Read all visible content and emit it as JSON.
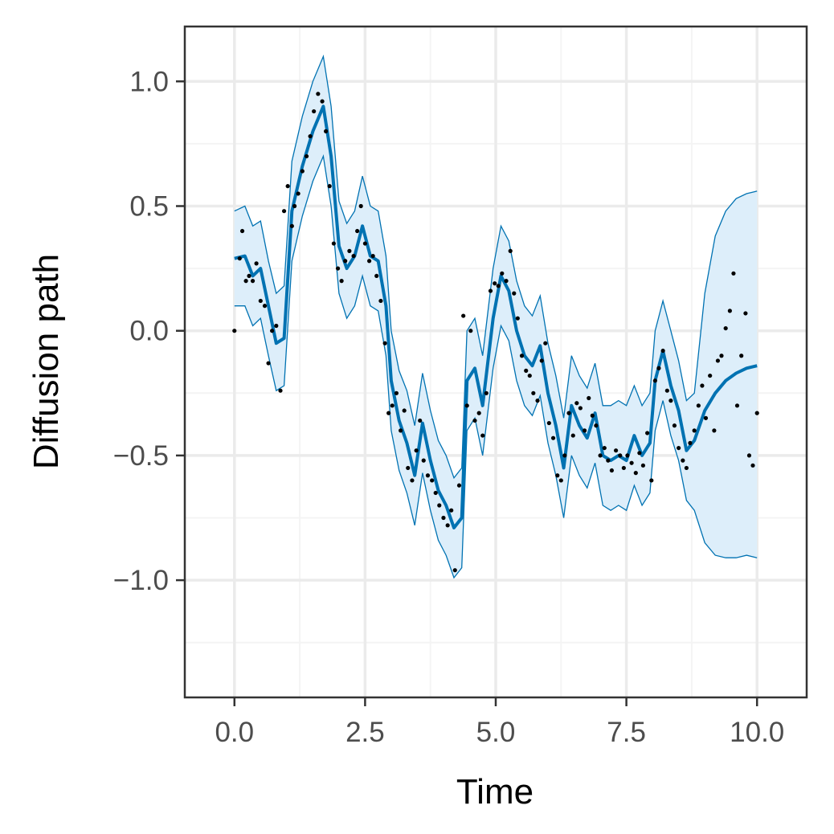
{
  "chart_data": {
    "type": "line",
    "xlabel": "Time",
    "ylabel": "Diffusion path",
    "xlim": [
      -0.95,
      10.95
    ],
    "ylim": [
      -1.47,
      1.22
    ],
    "x_ticks": [
      0.0,
      2.5,
      5.0,
      7.5,
      10.0
    ],
    "x_tick_labels": [
      "0.0",
      "2.5",
      "5.0",
      "7.5",
      "10.0"
    ],
    "y_ticks": [
      1.0,
      0.5,
      0.0,
      -0.5,
      -1.0
    ],
    "y_tick_labels": [
      "1.0",
      "0.5",
      "0.0",
      "−0.5",
      "−1.0"
    ],
    "grid": true,
    "series": [
      {
        "role": "posterior-mean",
        "x": [
          0.0,
          0.2,
          0.35,
          0.5,
          0.65,
          0.8,
          0.95,
          1.1,
          1.3,
          1.5,
          1.7,
          1.85,
          2.0,
          2.15,
          2.3,
          2.45,
          2.6,
          2.75,
          2.9,
          3.0,
          3.15,
          3.3,
          3.45,
          3.6,
          3.75,
          3.9,
          4.05,
          4.2,
          4.35,
          4.45,
          4.6,
          4.75,
          4.95,
          5.1,
          5.25,
          5.4,
          5.55,
          5.7,
          5.85,
          6.0,
          6.15,
          6.3,
          6.45,
          6.6,
          6.75,
          6.9,
          7.05,
          7.2,
          7.35,
          7.5,
          7.65,
          7.8,
          7.95,
          8.05,
          8.2,
          8.35,
          8.5,
          8.65,
          8.8,
          9.0,
          9.2,
          9.4,
          9.6,
          9.8,
          10.0
        ],
        "y": [
          0.29,
          0.3,
          0.22,
          0.25,
          0.1,
          -0.05,
          -0.03,
          0.48,
          0.66,
          0.8,
          0.9,
          0.7,
          0.34,
          0.25,
          0.3,
          0.42,
          0.3,
          0.28,
          0.1,
          -0.2,
          -0.36,
          -0.45,
          -0.58,
          -0.37,
          -0.52,
          -0.64,
          -0.7,
          -0.79,
          -0.75,
          -0.2,
          -0.15,
          -0.3,
          0.05,
          0.22,
          0.16,
          0.0,
          -0.1,
          -0.14,
          -0.06,
          -0.25,
          -0.38,
          -0.55,
          -0.3,
          -0.38,
          -0.43,
          -0.33,
          -0.5,
          -0.52,
          -0.5,
          -0.52,
          -0.42,
          -0.5,
          -0.45,
          -0.2,
          -0.08,
          -0.22,
          -0.32,
          -0.48,
          -0.44,
          -0.32,
          -0.25,
          -0.2,
          -0.17,
          -0.15,
          -0.14
        ]
      },
      {
        "role": "upper-band",
        "x": [
          0.0,
          0.2,
          0.35,
          0.5,
          0.65,
          0.8,
          0.95,
          1.1,
          1.3,
          1.5,
          1.7,
          1.85,
          2.0,
          2.15,
          2.3,
          2.45,
          2.6,
          2.75,
          2.9,
          3.0,
          3.15,
          3.3,
          3.45,
          3.6,
          3.75,
          3.9,
          4.05,
          4.2,
          4.35,
          4.45,
          4.6,
          4.75,
          4.95,
          5.1,
          5.25,
          5.4,
          5.55,
          5.7,
          5.85,
          6.0,
          6.15,
          6.3,
          6.45,
          6.6,
          6.75,
          6.9,
          7.05,
          7.2,
          7.35,
          7.5,
          7.65,
          7.8,
          7.95,
          8.05,
          8.2,
          8.35,
          8.5,
          8.65,
          8.8,
          9.0,
          9.2,
          9.4,
          9.6,
          9.8,
          10.0
        ],
        "y": [
          0.48,
          0.5,
          0.42,
          0.44,
          0.28,
          0.15,
          0.18,
          0.68,
          0.86,
          1.0,
          1.1,
          0.9,
          0.52,
          0.43,
          0.48,
          0.62,
          0.5,
          0.48,
          0.3,
          0.0,
          -0.16,
          -0.24,
          -0.38,
          -0.17,
          -0.32,
          -0.44,
          -0.5,
          -0.59,
          -0.55,
          0.0,
          0.05,
          -0.1,
          0.25,
          0.42,
          0.36,
          0.2,
          0.1,
          0.06,
          0.14,
          -0.05,
          -0.18,
          -0.35,
          -0.1,
          -0.18,
          -0.23,
          -0.13,
          -0.3,
          -0.3,
          -0.28,
          -0.3,
          -0.22,
          -0.3,
          -0.25,
          0.0,
          0.12,
          0.0,
          -0.12,
          -0.28,
          -0.25,
          0.15,
          0.38,
          0.48,
          0.53,
          0.55,
          0.56
        ]
      },
      {
        "role": "lower-band",
        "x": [
          0.0,
          0.2,
          0.35,
          0.5,
          0.65,
          0.8,
          0.95,
          1.1,
          1.3,
          1.5,
          1.7,
          1.85,
          2.0,
          2.15,
          2.3,
          2.45,
          2.6,
          2.75,
          2.9,
          3.0,
          3.15,
          3.3,
          3.45,
          3.6,
          3.75,
          3.9,
          4.05,
          4.2,
          4.35,
          4.45,
          4.6,
          4.75,
          4.95,
          5.1,
          5.25,
          5.4,
          5.55,
          5.7,
          5.85,
          6.0,
          6.15,
          6.3,
          6.45,
          6.6,
          6.75,
          6.9,
          7.05,
          7.2,
          7.35,
          7.5,
          7.65,
          7.8,
          7.95,
          8.05,
          8.2,
          8.35,
          8.5,
          8.65,
          8.8,
          9.0,
          9.2,
          9.4,
          9.6,
          9.8,
          10.0
        ],
        "y": [
          0.1,
          0.1,
          0.02,
          0.05,
          -0.1,
          -0.24,
          -0.22,
          0.28,
          0.46,
          0.6,
          0.7,
          0.5,
          0.15,
          0.05,
          0.1,
          0.22,
          0.1,
          0.08,
          -0.1,
          -0.4,
          -0.56,
          -0.65,
          -0.78,
          -0.57,
          -0.72,
          -0.84,
          -0.9,
          -0.99,
          -0.95,
          -0.4,
          -0.35,
          -0.5,
          -0.15,
          0.02,
          -0.04,
          -0.2,
          -0.3,
          -0.34,
          -0.26,
          -0.45,
          -0.58,
          -0.75,
          -0.5,
          -0.58,
          -0.63,
          -0.53,
          -0.7,
          -0.72,
          -0.7,
          -0.72,
          -0.62,
          -0.7,
          -0.65,
          -0.4,
          -0.28,
          -0.42,
          -0.52,
          -0.68,
          -0.72,
          -0.85,
          -0.9,
          -0.91,
          -0.91,
          -0.9,
          -0.91
        ]
      },
      {
        "role": "observations",
        "x": [
          0.0,
          0.1,
          0.15,
          0.22,
          0.28,
          0.35,
          0.42,
          0.5,
          0.58,
          0.65,
          0.72,
          0.8,
          0.88,
          0.95,
          1.02,
          1.1,
          1.15,
          1.22,
          1.3,
          1.38,
          1.45,
          1.52,
          1.6,
          1.68,
          1.75,
          1.82,
          1.9,
          1.98,
          2.05,
          2.12,
          2.2,
          2.28,
          2.35,
          2.42,
          2.5,
          2.58,
          2.65,
          2.72,
          2.8,
          2.88,
          2.95,
          3.02,
          3.1,
          3.18,
          3.25,
          3.32,
          3.4,
          3.48,
          3.55,
          3.62,
          3.7,
          3.78,
          3.85,
          3.92,
          4.0,
          4.08,
          4.15,
          4.22,
          4.3,
          4.38,
          4.45,
          4.52,
          4.6,
          4.68,
          4.75,
          4.82,
          4.9,
          4.98,
          5.05,
          5.12,
          5.2,
          5.28,
          5.35,
          5.42,
          5.5,
          5.58,
          5.65,
          5.72,
          5.8,
          5.88,
          5.95,
          6.02,
          6.1,
          6.18,
          6.25,
          6.32,
          6.4,
          6.48,
          6.55,
          6.62,
          6.7,
          6.78,
          6.85,
          6.92,
          7.0,
          7.08,
          7.15,
          7.22,
          7.3,
          7.38,
          7.45,
          7.52,
          7.6,
          7.68,
          7.75,
          7.82,
          7.9,
          7.98,
          8.05,
          8.12,
          8.2,
          8.28,
          8.35,
          8.42,
          8.5,
          8.58,
          8.65,
          8.72,
          8.8,
          8.88,
          8.95,
          9.02,
          9.1,
          9.18,
          9.25,
          9.32,
          9.4,
          9.48,
          9.55,
          9.62,
          9.7,
          9.78,
          9.85,
          9.92,
          10.0
        ],
        "y": [
          0.0,
          0.29,
          0.4,
          0.2,
          0.22,
          0.2,
          0.27,
          0.12,
          0.1,
          -0.13,
          0.0,
          0.02,
          -0.24,
          0.48,
          0.58,
          0.42,
          0.5,
          0.55,
          0.64,
          0.7,
          0.78,
          0.88,
          0.95,
          0.92,
          0.8,
          0.58,
          0.35,
          0.25,
          0.2,
          0.28,
          0.32,
          0.3,
          0.4,
          0.5,
          0.35,
          0.28,
          0.3,
          0.22,
          0.12,
          -0.05,
          -0.33,
          -0.3,
          -0.25,
          -0.4,
          -0.32,
          -0.55,
          -0.6,
          -0.48,
          -0.36,
          -0.52,
          -0.58,
          -0.6,
          -0.65,
          -0.7,
          -0.75,
          -0.78,
          -0.72,
          -0.96,
          -0.62,
          0.06,
          -0.3,
          0.0,
          -0.36,
          -0.33,
          -0.42,
          -0.25,
          0.16,
          0.19,
          0.18,
          0.23,
          0.2,
          0.32,
          0.15,
          0.05,
          -0.1,
          -0.16,
          -0.18,
          -0.25,
          -0.28,
          -0.12,
          -0.05,
          -0.37,
          -0.43,
          -0.58,
          -0.6,
          -0.5,
          -0.33,
          -0.42,
          -0.29,
          -0.31,
          -0.4,
          -0.27,
          -0.34,
          -0.38,
          -0.5,
          -0.47,
          -0.52,
          -0.56,
          -0.48,
          -0.5,
          -0.55,
          -0.5,
          -0.53,
          -0.57,
          -0.49,
          -0.54,
          -0.41,
          -0.6,
          -0.2,
          -0.15,
          -0.08,
          -0.24,
          -0.28,
          -0.38,
          -0.47,
          -0.52,
          -0.55,
          -0.45,
          -0.4,
          -0.3,
          -0.22,
          -0.35,
          -0.18,
          -0.4,
          -0.12,
          -0.1,
          0.01,
          0.08,
          0.23,
          -0.3,
          -0.1,
          0.07,
          -0.5,
          -0.54,
          -0.33
        ]
      }
    ]
  },
  "colors": {
    "line": "#0072b2",
    "band_fill": "#ddeefa",
    "band_edge": "#0072b2",
    "points": "#000000",
    "grid_major": "#ebebeb",
    "grid_minor": "#f4f4f4",
    "panel_border": "#333333",
    "tick_text": "#4d4d4d"
  }
}
